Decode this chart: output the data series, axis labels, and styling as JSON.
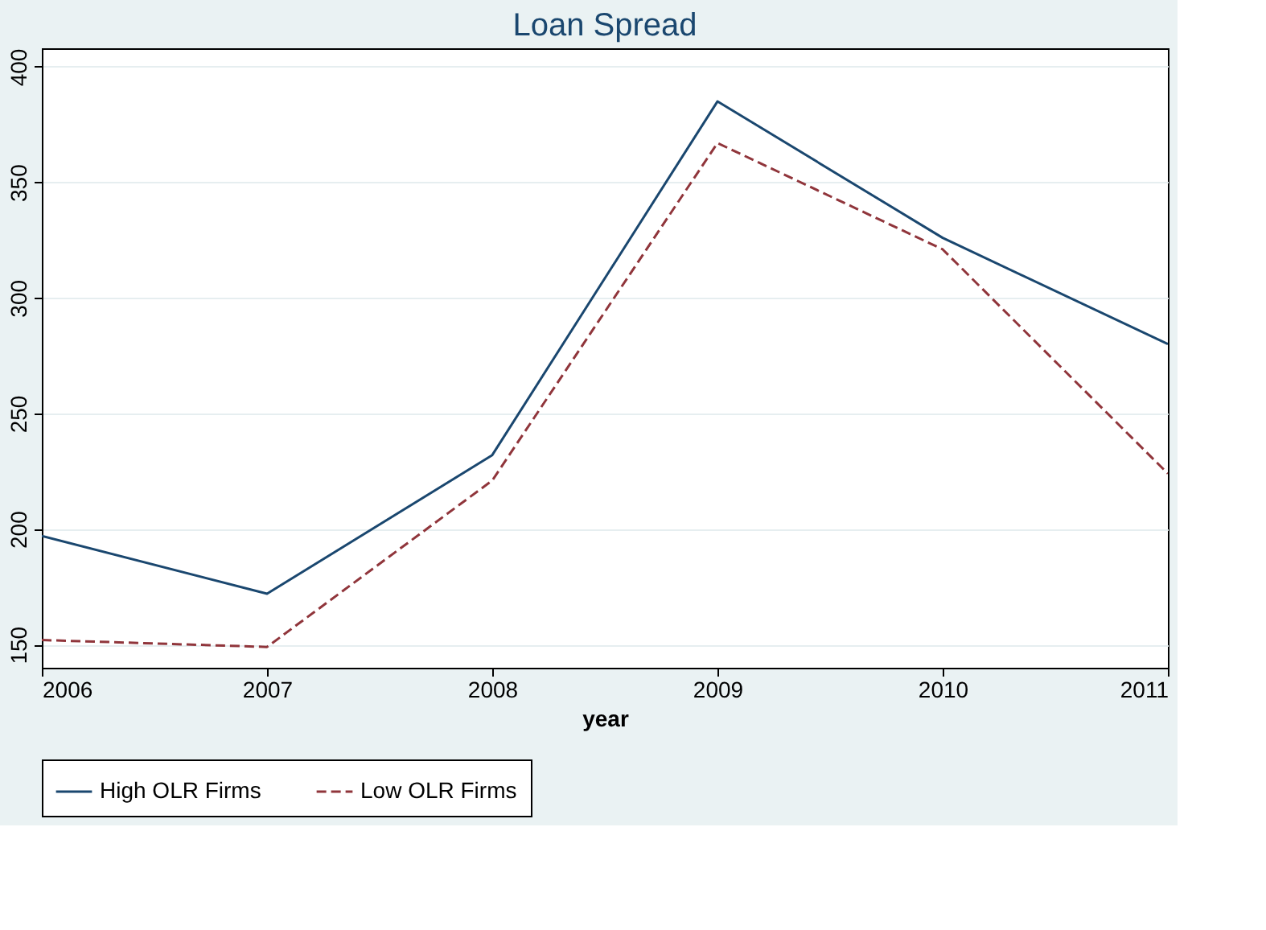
{
  "chart_data": {
    "type": "line",
    "title": "Loan Spread",
    "xlabel": "year",
    "x": [
      2006,
      2007,
      2008,
      2009,
      2010,
      2011
    ],
    "series": [
      {
        "name": "High OLR Firms",
        "color": "#1a476f",
        "line_style": "solid",
        "values": [
          197,
          172,
          232,
          385,
          326,
          280
        ]
      },
      {
        "name": "Low OLR Firms",
        "color": "#90353b",
        "line_style": "dashed",
        "values": [
          152,
          149,
          221,
          367,
          321,
          224
        ]
      }
    ],
    "xlim": [
      2006,
      2011
    ],
    "xticks": [
      2006,
      2007,
      2008,
      2009,
      2010,
      2011
    ],
    "ylim": [
      140,
      408
    ],
    "yticks": [
      150,
      200,
      250,
      300,
      350,
      400
    ],
    "grid": "y",
    "legend": "bottom",
    "marker": "none"
  }
}
